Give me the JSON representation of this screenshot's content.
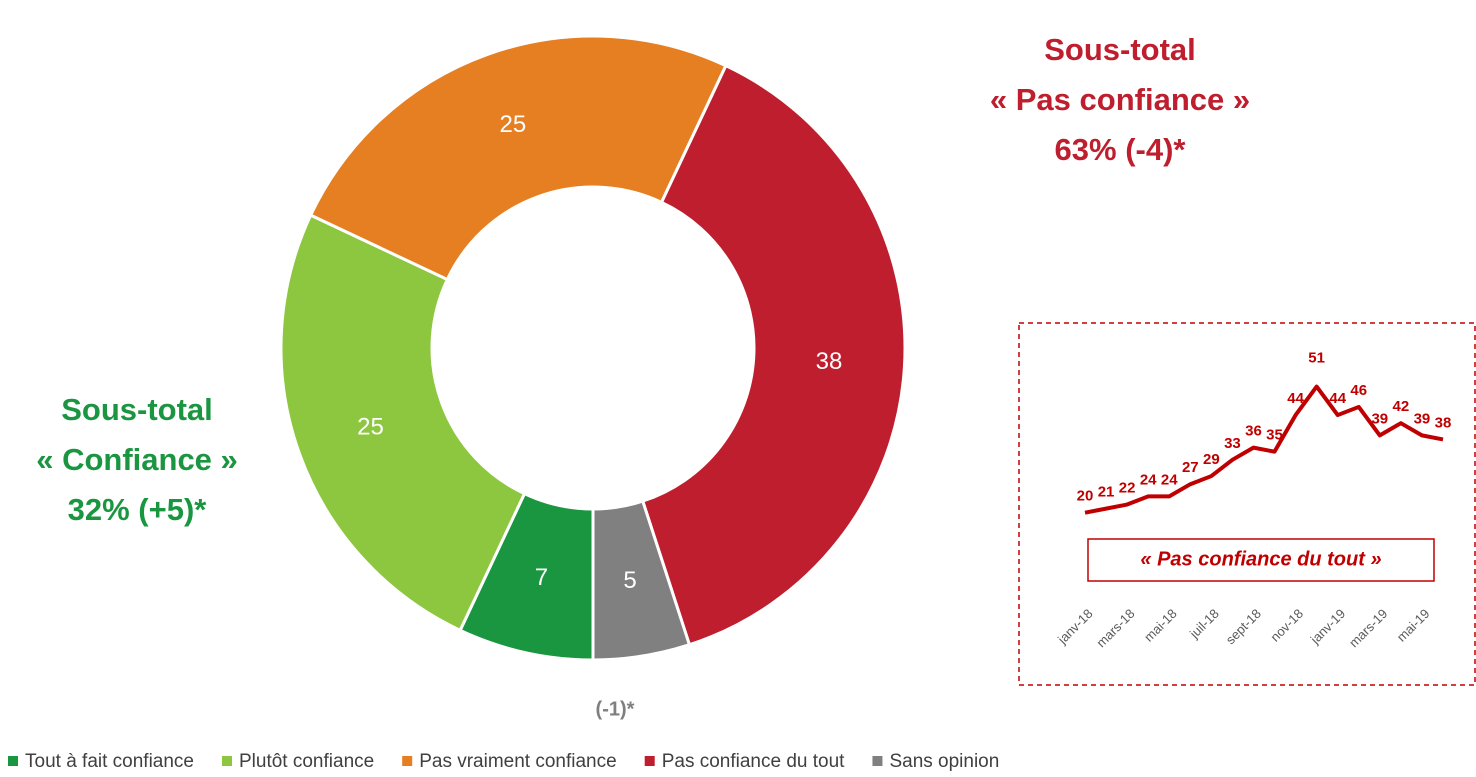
{
  "chart_data": [
    {
      "type": "donut",
      "categories": [
        "Tout à fait confiance",
        "Plutôt confiance",
        "Pas vraiment confiance",
        "Pas confiance du tout",
        "Sans opinion"
      ],
      "values": [
        7,
        25,
        25,
        38,
        5
      ],
      "colors": [
        "#1a9641",
        "#8dc63f",
        "#e67e22",
        "#be1e2d",
        "#808080"
      ],
      "annotations": [
        {
          "lines": [
            "Sous-total",
            "« Pas confiance »",
            "63% (-4)*"
          ],
          "color": "#be1e2d"
        },
        {
          "lines": [
            "Sous-total",
            "« Confiance »",
            "32% (+5)*"
          ],
          "color": "#1a9641"
        },
        {
          "lines": [
            "(-1)*"
          ],
          "color": "#7f7f7f"
        }
      ]
    },
    {
      "type": "line",
      "title": "« Pas confiance du tout »",
      "categories": [
        "janv-18",
        null,
        "mars-18",
        null,
        "mai-18",
        null,
        "juil-18",
        null,
        "sept-18",
        null,
        "nov-18",
        null,
        "janv-19",
        null,
        "mars-19",
        null,
        "mai-19",
        null
      ],
      "values": [
        20,
        21,
        22,
        24,
        24,
        27,
        29,
        33,
        36,
        35,
        44,
        51,
        44,
        46,
        39,
        42,
        39,
        38
      ],
      "color": "#c00000",
      "ylim": [
        0,
        60
      ]
    }
  ]
}
